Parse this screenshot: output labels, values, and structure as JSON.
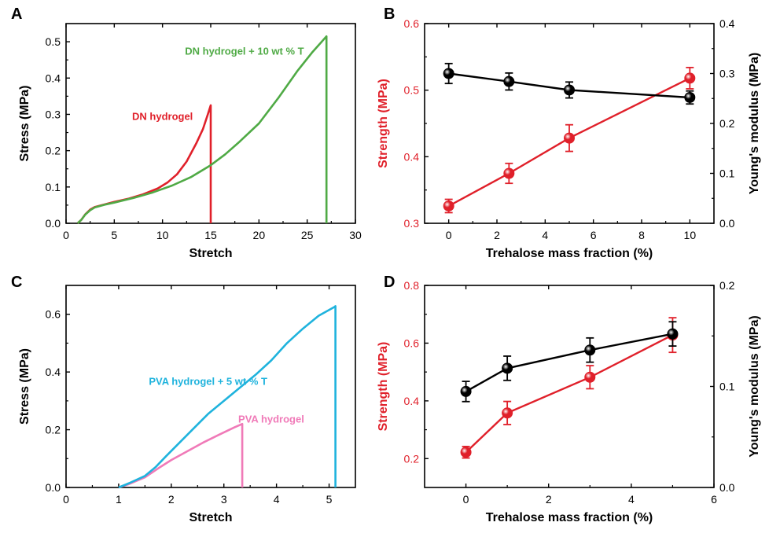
{
  "colors": {
    "red": "#e0202a",
    "green": "#4faa45",
    "cyan": "#1fb3dd",
    "pink": "#f07ab8",
    "black": "#000000"
  },
  "chart_data": [
    {
      "panel": "A",
      "type": "line",
      "xlabel": "Stretch",
      "ylabel": "Stress (MPa)",
      "xlim": [
        0,
        30
      ],
      "ylim": [
        0,
        0.55
      ],
      "xticks": [
        0,
        5,
        10,
        15,
        20,
        25,
        30
      ],
      "yticks": [
        0.0,
        0.1,
        0.2,
        0.3,
        0.4,
        0.5
      ],
      "series": [
        {
          "name": "DN hydrogel",
          "color": "red",
          "x": [
            1.2,
            1.6,
            2.0,
            2.5,
            3.0,
            4.0,
            5.0,
            6.5,
            8.0,
            9.5,
            10.5,
            11.5,
            12.5,
            13.5,
            14.2,
            14.7,
            15.0,
            15.0
          ],
          "y": [
            0.0,
            0.01,
            0.025,
            0.038,
            0.045,
            0.052,
            0.059,
            0.068,
            0.08,
            0.096,
            0.112,
            0.135,
            0.17,
            0.22,
            0.26,
            0.3,
            0.325,
            0.0
          ]
        },
        {
          "name": "DN hydrogel + 10 wt % T",
          "color": "green",
          "x": [
            1.2,
            1.6,
            2.0,
            2.5,
            3.0,
            4.0,
            5.0,
            7.0,
            9.0,
            11.0,
            13.0,
            15.0,
            16.5,
            18.0,
            20.0,
            22.0,
            24.0,
            25.5,
            26.5,
            27.0,
            27.0
          ],
          "y": [
            0.0,
            0.01,
            0.024,
            0.036,
            0.044,
            0.051,
            0.057,
            0.07,
            0.085,
            0.104,
            0.128,
            0.16,
            0.19,
            0.225,
            0.275,
            0.345,
            0.42,
            0.47,
            0.5,
            0.515,
            0.0
          ]
        }
      ]
    },
    {
      "panel": "B",
      "type": "scatter",
      "xlabel": "Trehalose mass fraction (%)",
      "ylabel_left": "Strength (MPa)",
      "ylabel_right": "Young's modulus (MPa)",
      "xlim": [
        -1,
        11
      ],
      "ylim_left": [
        0.3,
        0.6
      ],
      "ylim_right": [
        0.0,
        0.4
      ],
      "xticks": [
        0,
        2,
        4,
        6,
        8,
        10
      ],
      "yticks_left": [
        0.3,
        0.4,
        0.5,
        0.6
      ],
      "yticks_right": [
        0.0,
        0.1,
        0.2,
        0.3,
        0.4
      ],
      "series": [
        {
          "name": "Strength",
          "axis": "left",
          "color": "red",
          "x": [
            0,
            2.5,
            5,
            10
          ],
          "y": [
            0.326,
            0.375,
            0.428,
            0.518
          ],
          "err": [
            0.01,
            0.015,
            0.02,
            0.016
          ]
        },
        {
          "name": "Young's modulus",
          "axis": "right",
          "color": "black",
          "x": [
            0,
            2.5,
            5,
            10
          ],
          "y": [
            0.3,
            0.284,
            0.267,
            0.252
          ],
          "err": [
            0.02,
            0.017,
            0.016,
            0.013
          ]
        }
      ]
    },
    {
      "panel": "C",
      "type": "line",
      "xlabel": "Stretch",
      "ylabel": "Stress (MPa)",
      "xlim": [
        0,
        5.5
      ],
      "ylim": [
        0,
        0.7
      ],
      "xticks": [
        0,
        1,
        2,
        3,
        4,
        5
      ],
      "yticks": [
        0.0,
        0.2,
        0.4,
        0.6
      ],
      "series": [
        {
          "name": "PVA hydrogel",
          "color": "pink",
          "x": [
            1.0,
            1.2,
            1.5,
            1.8,
            2.0,
            2.3,
            2.6,
            2.9,
            3.2,
            3.35,
            3.35
          ],
          "y": [
            0.0,
            0.012,
            0.035,
            0.072,
            0.095,
            0.125,
            0.155,
            0.182,
            0.208,
            0.22,
            0.0
          ]
        },
        {
          "name": "PVA hydrogel + 5 wt % T",
          "color": "cyan",
          "x": [
            1.0,
            1.2,
            1.5,
            1.7,
            1.9,
            2.1,
            2.4,
            2.7,
            3.0,
            3.3,
            3.6,
            3.9,
            4.2,
            4.5,
            4.8,
            5.1,
            5.12,
            5.12
          ],
          "y": [
            0.0,
            0.015,
            0.04,
            0.07,
            0.108,
            0.145,
            0.2,
            0.255,
            0.3,
            0.345,
            0.39,
            0.44,
            0.5,
            0.55,
            0.595,
            0.625,
            0.628,
            0.0
          ]
        }
      ]
    },
    {
      "panel": "D",
      "type": "scatter",
      "xlabel": "Trehalose mass fraction (%)",
      "ylabel_left": "Strength (MPa)",
      "ylabel_right": "Young's modulus (MPa)",
      "xlim": [
        -1,
        6
      ],
      "ylim_left": [
        0.1,
        0.8
      ],
      "ylim_right": [
        0.0,
        0.2
      ],
      "xticks": [
        0,
        2,
        4,
        6
      ],
      "yticks_left": [
        0.2,
        0.4,
        0.6,
        0.8
      ],
      "yticks_right": [
        0.0,
        0.1,
        0.2
      ],
      "series": [
        {
          "name": "Strength",
          "axis": "left",
          "color": "red",
          "x": [
            0,
            1,
            3,
            5
          ],
          "y": [
            0.222,
            0.358,
            0.482,
            0.628
          ],
          "err": [
            0.02,
            0.04,
            0.04,
            0.06
          ]
        },
        {
          "name": "Young's modulus",
          "axis": "right",
          "color": "black",
          "x": [
            0,
            1,
            3,
            5
          ],
          "y": [
            0.095,
            0.118,
            0.136,
            0.152
          ],
          "err": [
            0.01,
            0.012,
            0.012,
            0.012
          ]
        }
      ]
    }
  ],
  "panels": {
    "A": {
      "label": "A",
      "annotations": [
        {
          "text": "DN hydrogel + 10 wt % T",
          "color": "green",
          "x": 18.5,
          "y": 0.465
        },
        {
          "text": "DN hydrogel",
          "color": "red",
          "x": 10.0,
          "y": 0.285
        }
      ]
    },
    "B": {
      "label": "B",
      "annotations": []
    },
    "C": {
      "label": "C",
      "annotations": [
        {
          "text": "PVA hydrogel + 5 wt % T",
          "color": "cyan",
          "x": 2.7,
          "y": 0.355
        },
        {
          "text": "PVA hydrogel",
          "color": "pink",
          "x": 3.9,
          "y": 0.225
        }
      ]
    },
    "D": {
      "label": "D",
      "annotations": []
    }
  }
}
